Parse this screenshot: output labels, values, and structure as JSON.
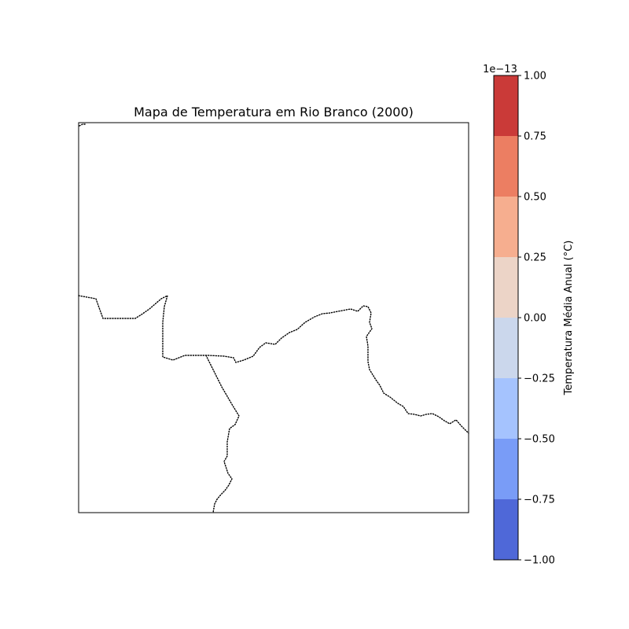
{
  "chart_data": {
    "type": "map",
    "title": "Mapa de Temperatura em Rio Branco (2000)",
    "map": {
      "features": [
        "state-border-north",
        "state-border-south",
        "state-border-west"
      ],
      "border_style": "dotted"
    },
    "colorbar": {
      "label": "Temperatura Média Anual (°C)",
      "exponent_label": "1e−13",
      "range": [
        -1.0,
        1.0
      ],
      "levels": [
        -1.0,
        -0.75,
        -0.5,
        -0.25,
        0.0,
        0.25,
        0.5,
        0.75,
        1.0
      ],
      "tick_labels": [
        "−1.00",
        "−0.75",
        "−0.50",
        "−0.25",
        "0.00",
        "0.25",
        "0.50",
        "0.75",
        "1.00"
      ],
      "colors": [
        "#4f68d8",
        "#799cf7",
        "#a5c3fe",
        "#cbd7ec",
        "#ecd4c7",
        "#f6ae8f",
        "#ec7e62",
        "#ca3a38"
      ]
    }
  }
}
